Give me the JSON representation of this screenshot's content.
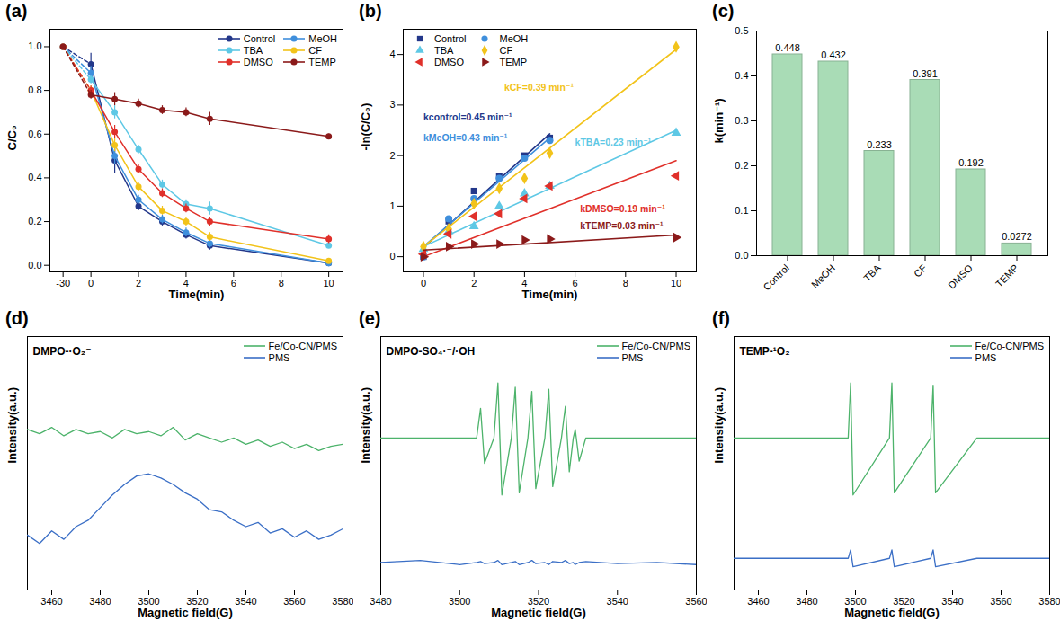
{
  "chart_data": [
    {
      "type": "line",
      "title": "(a)",
      "xlabel": "Time(min)",
      "ylabel": "C/C₀",
      "x": [
        -30,
        0,
        1,
        2,
        3,
        4,
        5,
        10
      ],
      "xlim": [
        -32,
        10.6
      ],
      "xticks": [
        -30,
        0,
        2,
        4,
        6,
        8,
        10
      ],
      "ylim": [
        -0.03,
        1.08
      ],
      "yticks": [
        {
          "value": 0,
          "label": "0.0"
        },
        {
          "value": 0.2,
          "label": "0.2"
        },
        {
          "value": 0.4,
          "label": "0.4"
        },
        {
          "value": 0.6,
          "label": "0.6"
        },
        {
          "value": 0.8,
          "label": "0.8"
        },
        {
          "value": 1,
          "label": "1.0"
        }
      ],
      "legend": "upper right",
      "series": [
        {
          "name": "Control",
          "color": "#23378a",
          "marker": "circle",
          "values": [
            1.0,
            0.92,
            0.48,
            0.27,
            0.2,
            0.14,
            0.09,
            0.01
          ],
          "errors": [
            0,
            0.05,
            0.06,
            0.02,
            0.02,
            0.02,
            0.02,
            0.01
          ]
        },
        {
          "name": "MeOH",
          "color": "#3f8fdc",
          "marker": "circle",
          "values": [
            1.0,
            0.88,
            0.5,
            0.3,
            0.21,
            0.15,
            0.1,
            0.01
          ],
          "errors": [
            0,
            0.03,
            0.04,
            0.02,
            0.02,
            0.02,
            0.02,
            0.01
          ]
        },
        {
          "name": "TBA",
          "color": "#5ec8e5",
          "marker": "circle",
          "values": [
            1.0,
            0.85,
            0.7,
            0.53,
            0.37,
            0.28,
            0.26,
            0.09
          ],
          "errors": [
            0,
            0.02,
            0.03,
            0.02,
            0.02,
            0.02,
            0.03,
            0.01
          ]
        },
        {
          "name": "CF",
          "color": "#f2c31a",
          "marker": "circle",
          "values": [
            1.0,
            0.8,
            0.55,
            0.36,
            0.25,
            0.2,
            0.13,
            0.02
          ],
          "errors": [
            0,
            0.02,
            0.03,
            0.02,
            0.02,
            0.02,
            0.02,
            0.01
          ]
        },
        {
          "name": "DMSO",
          "color": "#e0302a",
          "marker": "circle",
          "values": [
            1.0,
            0.8,
            0.61,
            0.44,
            0.33,
            0.26,
            0.2,
            0.12
          ],
          "errors": [
            0,
            0.02,
            0.03,
            0.02,
            0.02,
            0.02,
            0.02,
            0.02
          ]
        },
        {
          "name": "TEMP",
          "color": "#8b1a1a",
          "marker": "circle",
          "values": [
            1.0,
            0.78,
            0.76,
            0.74,
            0.71,
            0.7,
            0.67,
            0.59
          ],
          "errors": [
            0,
            0.02,
            0.03,
            0.02,
            0.02,
            0.02,
            0.03,
            0.01
          ]
        }
      ]
    },
    {
      "type": "scatter",
      "title": "(b)",
      "xlabel": "Time(min)",
      "ylabel": "-ln(C/C₀)",
      "x": [
        0,
        1,
        2,
        3,
        4,
        5,
        10
      ],
      "xlim": [
        -0.8,
        10.8
      ],
      "xticks": [
        0,
        2,
        4,
        6,
        8,
        10
      ],
      "ylim": [
        -0.3,
        4.5
      ],
      "yticks": [
        0,
        1,
        2,
        3,
        4
      ],
      "legend": "upper left",
      "series": [
        {
          "name": "Control",
          "color": "#23378a",
          "marker": "square",
          "values": [
            0.0,
            0.7,
            1.3,
            1.6,
            2.0,
            2.35,
            null
          ],
          "fit_x": [
            0,
            5
          ],
          "fit_y": [
            0.18,
            2.43
          ],
          "annotation": {
            "text": "kcontrol=0.45 min⁻¹",
            "x": 0.0,
            "y": 2.75
          }
        },
        {
          "name": "MeOH",
          "color": "#3f8fdc",
          "marker": "circle",
          "values": [
            0.0,
            0.75,
            1.15,
            1.55,
            1.95,
            2.3,
            null
          ],
          "fit_x": [
            0,
            5
          ],
          "fit_y": [
            0.2,
            2.35
          ],
          "annotation": {
            "text": "kMeOH=0.43 min⁻¹",
            "x": 0.0,
            "y": 2.35
          }
        },
        {
          "name": "TBA",
          "color": "#5ec8e5",
          "marker": "triangle",
          "values": [
            0.15,
            0.5,
            0.6,
            1.0,
            1.25,
            1.4,
            2.45
          ],
          "fit_x": [
            0,
            10
          ],
          "fit_y": [
            0.2,
            2.5
          ],
          "annotation": {
            "text": "kTBA=0.23 min⁻¹",
            "x": 6.0,
            "y": 2.25
          }
        },
        {
          "name": "CF",
          "color": "#f2c31a",
          "marker": "diamond",
          "values": [
            0.2,
            0.55,
            1.05,
            1.35,
            1.55,
            2.05,
            4.15
          ],
          "fit_x": [
            0,
            10
          ],
          "fit_y": [
            0.2,
            4.1
          ],
          "annotation": {
            "text": "kCF=0.39 min⁻¹",
            "x": 3.2,
            "y": 3.35
          }
        },
        {
          "name": "DMSO",
          "color": "#e0302a",
          "marker": "triangle-left",
          "values": [
            0.05,
            0.45,
            0.8,
            0.85,
            1.15,
            1.4,
            1.6
          ],
          "fit_x": [
            0,
            10
          ],
          "fit_y": [
            0.0,
            1.9
          ],
          "annotation": {
            "text": "kDMSO=0.19 min⁻¹",
            "x": 6.2,
            "y": 0.95
          }
        },
        {
          "name": "TEMP",
          "color": "#8b1a1a",
          "marker": "triangle-right",
          "values": [
            0.0,
            0.2,
            0.25,
            0.25,
            0.33,
            0.35,
            0.38
          ],
          "fit_x": [
            0,
            10
          ],
          "fit_y": [
            0.13,
            0.43
          ],
          "annotation": {
            "text": "kTEMP=0.03 min⁻¹",
            "x": 6.2,
            "y": 0.6
          }
        }
      ]
    },
    {
      "type": "bar",
      "title": "(c)",
      "ylabel": "k(min⁻¹)",
      "categories": [
        "Control",
        "MeOH",
        "TBA",
        "CF",
        "DMSO",
        "TEMP"
      ],
      "values": [
        0.448,
        0.432,
        0.233,
        0.391,
        0.192,
        0.0272
      ],
      "color": "#a9dcb6",
      "data_labels": true,
      "ylim": [
        0,
        0.5
      ],
      "yticks": [
        {
          "value": 0,
          "label": "0.0"
        },
        {
          "value": 0.1,
          "label": "0.1"
        },
        {
          "value": 0.2,
          "label": "0.2"
        },
        {
          "value": 0.3,
          "label": "0.3"
        },
        {
          "value": 0.4,
          "label": "0.4"
        },
        {
          "value": 0.5,
          "label": "0.5"
        }
      ]
    },
    {
      "type": "line",
      "title": "(d)",
      "annotation": "DMPO-·O₂⁻",
      "xlabel": "Magnetic field(G)",
      "ylabel": "Intensity(a.u.)",
      "x": [
        3450,
        3455,
        3460,
        3465,
        3470,
        3475,
        3480,
        3485,
        3490,
        3495,
        3500,
        3505,
        3510,
        3515,
        3520,
        3525,
        3530,
        3535,
        3540,
        3545,
        3550,
        3555,
        3560,
        3565,
        3570,
        3575,
        3580
      ],
      "xlim": [
        3450,
        3580
      ],
      "xticks": [
        3460,
        3480,
        3500,
        3520,
        3540,
        3560,
        3580
      ],
      "ylim": [
        0,
        12
      ],
      "yticks": [],
      "tick_labels": "x",
      "legend": "upper right",
      "series": [
        {
          "name": "Fe/Co-CN/PMS",
          "color": "#4db36b",
          "values": [
            7.6,
            7.4,
            7.7,
            7.3,
            7.6,
            7.4,
            7.5,
            7.2,
            7.6,
            7.4,
            7.5,
            7.3,
            7.7,
            7.1,
            7.4,
            7.2,
            7.0,
            7.2,
            6.9,
            7.1,
            6.8,
            7.0,
            6.7,
            6.9,
            6.6,
            6.8,
            6.9
          ]
        },
        {
          "name": "PMS",
          "color": "#3b6fc6",
          "values": [
            2.6,
            2.2,
            2.8,
            2.4,
            3.0,
            3.3,
            3.9,
            4.5,
            5.0,
            5.4,
            5.5,
            5.3,
            5.0,
            4.6,
            4.3,
            3.8,
            3.7,
            3.3,
            3.0,
            3.2,
            2.7,
            2.9,
            2.5,
            2.8,
            2.4,
            2.6,
            2.9
          ]
        }
      ]
    },
    {
      "type": "line",
      "title": "(e)",
      "annotation": "DMPO-SO₄·⁻/·OH",
      "xlabel": "Magnetic field(G)",
      "ylabel": "Intensity(a.u.)",
      "x": [
        3480,
        3490,
        3500,
        3504.3,
        3505.3,
        3506.3,
        3508.7,
        3509.7,
        3510.7,
        3513.1,
        3514.1,
        3515.1,
        3517.3,
        3518.3,
        3519.3,
        3521.6,
        3522.6,
        3523.6,
        3525.8,
        3526.8,
        3527.8,
        3528.8,
        3529.3,
        3530.3,
        3532,
        3540,
        3550,
        3560
      ],
      "xlim": [
        3480,
        3560
      ],
      "xticks": [
        3480,
        3500,
        3520,
        3540,
        3560
      ],
      "ylim": [
        0,
        12
      ],
      "yticks": [],
      "tick_labels": "x",
      "legend": "upper right",
      "series": [
        {
          "name": "Fe/Co-CN/PMS",
          "color": "#4db36b",
          "values": [
            7.2,
            7.2,
            7.2,
            7.2,
            8.6,
            6.0,
            7.2,
            9.8,
            4.5,
            7.2,
            9.6,
            4.6,
            7.2,
            9.4,
            4.8,
            7.2,
            9.5,
            4.9,
            7.2,
            8.7,
            5.6,
            7.2,
            7.6,
            6.1,
            7.2,
            7.2,
            7.2,
            7.2
          ]
        },
        {
          "name": "PMS",
          "color": "#3b6fc6",
          "values": [
            1.3,
            1.4,
            1.2,
            1.3,
            1.35,
            1.25,
            1.3,
            1.4,
            1.2,
            1.3,
            1.35,
            1.2,
            1.3,
            1.4,
            1.25,
            1.3,
            1.2,
            1.35,
            1.3,
            1.4,
            1.25,
            1.3,
            1.2,
            1.3,
            1.35,
            1.25,
            1.3,
            1.2
          ]
        }
      ]
    },
    {
      "type": "line",
      "title": "(f)",
      "annotation": "TEMP-¹O₂",
      "xlabel": "Magnetic field(G)",
      "ylabel": "Intensity(a.u.)",
      "x": [
        3450,
        3470,
        3490,
        3497,
        3498,
        3499,
        3514,
        3515,
        3516,
        3531,
        3532,
        3533,
        3550,
        3565,
        3580
      ],
      "xlim": [
        3450,
        3580
      ],
      "xticks": [
        3460,
        3480,
        3500,
        3520,
        3540,
        3560,
        3580
      ],
      "ylim": [
        0,
        12
      ],
      "yticks": [],
      "tick_labels": "x",
      "legend": "upper right",
      "series": [
        {
          "name": "Fe/Co-CN/PMS",
          "color": "#4db36b",
          "values": [
            7.2,
            7.2,
            7.2,
            7.2,
            9.8,
            4.5,
            7.2,
            9.8,
            4.6,
            7.2,
            9.7,
            4.6,
            7.2,
            7.2,
            7.2
          ]
        },
        {
          "name": "PMS",
          "color": "#3b6fc6",
          "values": [
            1.5,
            1.5,
            1.5,
            1.5,
            1.9,
            1.1,
            1.5,
            1.9,
            1.1,
            1.5,
            1.9,
            1.1,
            1.5,
            1.5,
            1.5
          ]
        }
      ]
    }
  ]
}
